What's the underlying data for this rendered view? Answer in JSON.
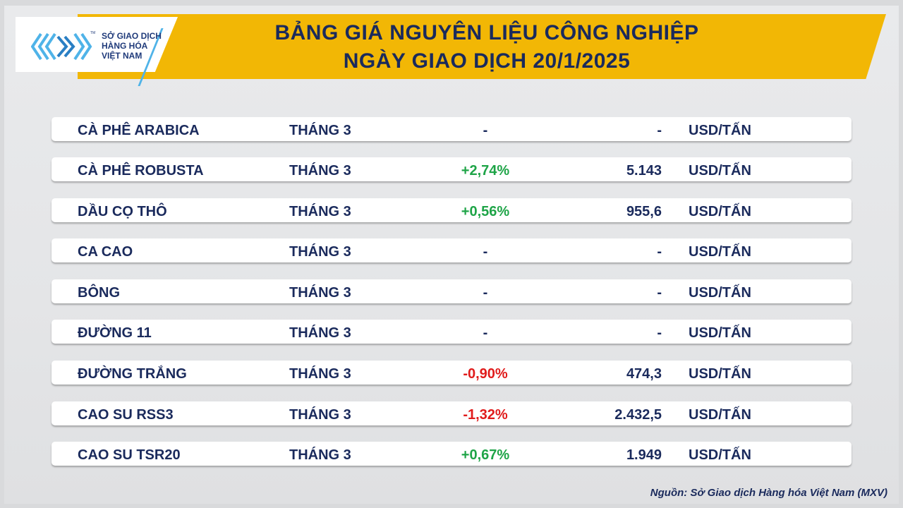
{
  "header": {
    "logo_text": [
      "SỞ GIAO DỊCH",
      "HÀNG HÓA",
      "VIỆT NAM"
    ],
    "logo_tm": "TM",
    "title_line1": "BẢNG GIÁ NGUYÊN LIỆU CÔNG NGHIỆP",
    "title_line2": "NGÀY GIAO DỊCH 20/1/2025"
  },
  "rows": [
    {
      "name": "CÀ PHÊ ARABICA",
      "month": "THÁNG 3",
      "change": "-",
      "trend": "none",
      "price": "-",
      "unit": "USD/TẤN"
    },
    {
      "name": "CÀ PHÊ ROBUSTA",
      "month": "THÁNG 3",
      "change": "+2,74%",
      "trend": "up",
      "price": "5.143",
      "unit": "USD/TẤN"
    },
    {
      "name": "DẦU CỌ THÔ",
      "month": "THÁNG 3",
      "change": "+0,56%",
      "trend": "up",
      "price": "955,6",
      "unit": "USD/TẤN"
    },
    {
      "name": "CA CAO",
      "month": "THÁNG 3",
      "change": "-",
      "trend": "none",
      "price": "-",
      "unit": "USD/TẤN"
    },
    {
      "name": "BÔNG",
      "month": "THÁNG 3",
      "change": "-",
      "trend": "none",
      "price": "-",
      "unit": "USD/TẤN"
    },
    {
      "name": "ĐƯỜNG 11",
      "month": "THÁNG 3",
      "change": "-",
      "trend": "none",
      "price": "-",
      "unit": "USD/TẤN"
    },
    {
      "name": "ĐƯỜNG TRẮNG",
      "month": "THÁNG 3",
      "change": "-0,90%",
      "trend": "down",
      "price": "474,3",
      "unit": "USD/TẤN"
    },
    {
      "name": "CAO SU RSS3",
      "month": "THÁNG 3",
      "change": "-1,32%",
      "trend": "down",
      "price": "2.432,5",
      "unit": "USD/TẤN"
    },
    {
      "name": "CAO SU TSR20",
      "month": "THÁNG 3",
      "change": "+0,67%",
      "trend": "up",
      "price": "1.949",
      "unit": "USD/TẤN"
    }
  ],
  "colors": {
    "banner": "#f2b705",
    "title": "#1a2a5c",
    "up": "#1ea447",
    "down": "#e01b1b",
    "logo_accent": "#4fb3e8"
  },
  "footer": {
    "source": "Nguồn: Sở Giao dịch Hàng hóa Việt Nam (MXV)"
  }
}
